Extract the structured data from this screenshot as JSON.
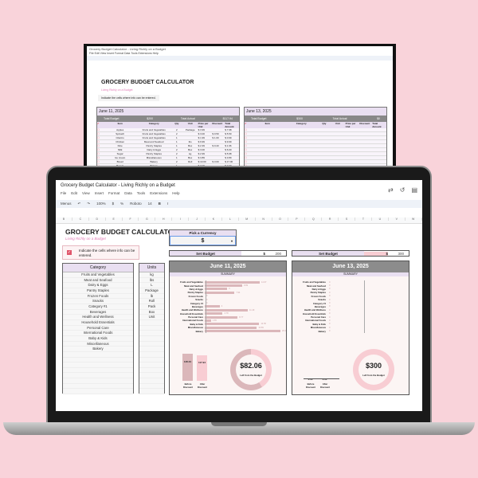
{
  "colors": {
    "background": "#f9d3da",
    "lavender": "#e9dff1",
    "header_gray": "#8c8c8c",
    "bar_pink": "#dbb7ba",
    "light_pink": "#f8cdd3"
  },
  "back_sheet": {
    "title": "GROCERY BUDGET CALCULATOR",
    "subtitle": "Living Richly on a Budget",
    "note": "Indicate the cells where info can be entered.",
    "menu": [
      "File",
      "Edit",
      "View",
      "Insert",
      "Format",
      "Data",
      "Tools",
      "Extensions",
      "Help"
    ],
    "tables": [
      {
        "date": "June 11, 2025",
        "total_budget_label": "Total Budget",
        "total_budget": "$200",
        "total_actual_label": "Total Actual",
        "total_actual": "$117.94",
        "headers": [
          "✔",
          "Item",
          "Category",
          "Qty",
          "Unit",
          "Price per Unit",
          "Discount",
          "Total Amount"
        ],
        "rows": [
          [
            "Apples",
            "Fruits and Vegetables",
            "2",
            "Package",
            "$ 3.99",
            "",
            "$ 7.98"
          ],
          [
            "Spinach",
            "Fruits and Vegetables",
            "2",
            "",
            "$ 3.00",
            "$ 0.50",
            "$ 5.50"
          ],
          [
            "Cilantro",
            "Fruits and Vegetables",
            "1",
            "",
            "$ 1.99",
            "$ 1.00",
            "$ 0.99"
          ],
          [
            "Chicken",
            "Meat and Seafood",
            "1",
            "lbs",
            "$ 9.99",
            "",
            "$ 9.99"
          ],
          [
            "Rice",
            "Pantry Staples",
            "1",
            "Box",
            "$ 2.39",
            "$ 0.43",
            "$ 1.96"
          ],
          [
            "Milk",
            "Dairy & Eggs",
            "2",
            "Box",
            "$ 3.00",
            "",
            "$ 6.00"
          ],
          [
            "Sugar",
            "Pantry Staples",
            "2",
            "kg",
            "$ 2.99",
            "",
            "$ 5.98"
          ],
          [
            "Ice cream",
            "Miscellaneous",
            "1",
            "Box",
            "$ 3.89",
            "",
            "$ 3.89"
          ],
          [
            "Bread",
            "Bakery",
            "2",
            "Roll",
            "$ 10.00",
            "$ 3.00",
            "$ 17.00"
          ],
          [
            "Bagels",
            "Bakery",
            "1",
            "",
            "$ 3.00",
            "",
            "$ 3.00"
          ]
        ]
      },
      {
        "date": "June 13, 2025",
        "total_budget_label": "Total Budget",
        "total_budget": "$300",
        "total_actual_label": "Total Actual",
        "total_actual": "$0",
        "headers": [
          "✔",
          "Item",
          "Category",
          "Qty",
          "Unit",
          "Price per Unit",
          "Discount",
          "Total Amount"
        ],
        "rows": []
      }
    ]
  },
  "window": {
    "title": "Grocery Budget Calculator - Living Richly on a Budget",
    "menu": [
      "File",
      "Edit",
      "View",
      "Insert",
      "Format",
      "Data",
      "Tools",
      "Extensions",
      "Help"
    ],
    "toolbar": {
      "menus": "Menus",
      "zoom": "100%",
      "currency": "$",
      "percent": "%",
      "font": "Roboto",
      "font_size": "14"
    },
    "columns": [
      "B",
      "C",
      "D",
      "E",
      "F",
      "G",
      "H",
      "I",
      "J",
      "K",
      "L",
      "M",
      "N",
      "O",
      "P",
      "Q",
      "R",
      "S",
      "T",
      "U",
      "V",
      "W"
    ]
  },
  "sheet": {
    "title": "GROCERY BUDGET CALCULATOR",
    "subtitle": "Living Richly on a Budget",
    "note": "Indicate the cells where info can be entered.",
    "category_header": "Category",
    "categories": [
      "Fruits and Vegetables",
      "Meat and Seafood",
      "Dairy & Eggs",
      "Pantry Staples",
      "Frozen Foods",
      "Snacks",
      "Category #1",
      "Beverages",
      "Health and Wellness",
      "Household Essentials",
      "Personal Care",
      "International Foods",
      "Baby & Kids",
      "Miscellaneous",
      "Bakery"
    ],
    "units_header": "Units",
    "units": [
      "kg",
      "lbs",
      "L",
      "Package",
      "lb",
      "Roll",
      "Pack",
      "Box",
      "Unit"
    ],
    "currency_label": "Pick a Currency",
    "currency_value": "$",
    "panels": [
      {
        "set_budget_label": "Set Budget",
        "currency": "$",
        "budget": "200",
        "date": "June 11, 2025",
        "summary_label": "SUMMARY",
        "bar_values": [
          14.67,
          9.99,
          6,
          7.94,
          0,
          0,
          0,
          4,
          11.49,
          4.78,
          8.77,
          1.65,
          14.56,
          13.89,
          20.2
        ],
        "before_discount": "126.01",
        "after_discount": "117.94",
        "before_label": "Before Discount",
        "after_label": "After Discount",
        "left_amount": "$82.06",
        "left_label": "Left from the Budget",
        "spent_fraction": 0.59
      },
      {
        "set_budget_label": "Set Budget",
        "currency": "$",
        "budget": "300",
        "date": "June 13, 2025",
        "summary_label": "SUMMARY",
        "bar_values": [
          0,
          0,
          0,
          0,
          0,
          0,
          0,
          0,
          0,
          0,
          0,
          0,
          0,
          0,
          0
        ],
        "before_discount": "0.00",
        "after_discount": "0.00",
        "before_label": "Before Discount",
        "after_label": "After Discount",
        "left_amount": "$300",
        "left_label": "Left from the Budget",
        "spent_fraction": 0
      }
    ]
  }
}
